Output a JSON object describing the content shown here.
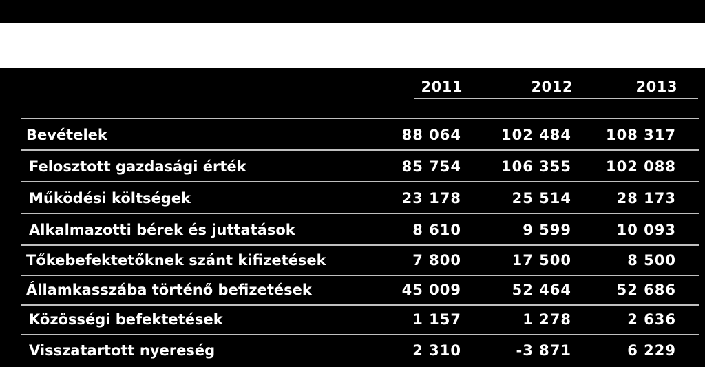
{
  "table": {
    "years": [
      "2011",
      "2012",
      "2013"
    ],
    "rows": [
      {
        "label": "Bevételek",
        "values": [
          "88 064",
          "102 484",
          "108 317"
        ]
      },
      {
        "label": "Felosztott gazdasági érték",
        "values": [
          "85 754",
          "106 355",
          "102 088"
        ]
      },
      {
        "label": "Működési költségek",
        "values": [
          "23 178",
          "25 514",
          "28 173"
        ]
      },
      {
        "label": "Alkalmazotti bérek és juttatások",
        "values": [
          "8 610",
          "9 599",
          "10 093"
        ]
      },
      {
        "label": "Tőkebefektetőknek szánt kifizetések",
        "values": [
          "7 800",
          "17 500",
          "8 500"
        ]
      },
      {
        "label": "Államkasszába történő befizetések",
        "values": [
          "45 009",
          "52 464",
          "52 686"
        ]
      },
      {
        "label": "Közösségi befektetések",
        "values": [
          "1 157",
          "1 278",
          "2 636"
        ]
      },
      {
        "label": "Visszatartott nyereség",
        "values": [
          "2 310",
          "-3 871",
          "6 229"
        ]
      }
    ]
  }
}
